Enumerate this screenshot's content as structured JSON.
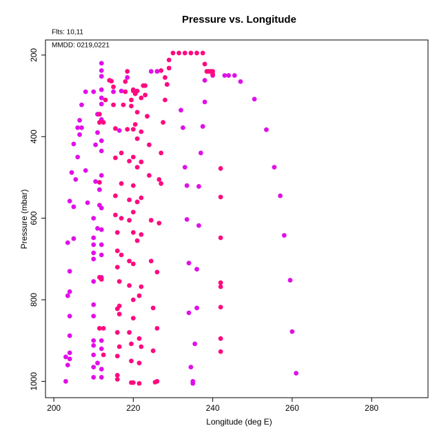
{
  "chart_data": {
    "type": "scatter",
    "title": "Pressure vs. Longitude",
    "annotations": [
      "Flts: 10,11",
      "MMDD: 0219,0221"
    ],
    "x_label": "Longitude (deg E)",
    "y_label": "Pressure (mbar)",
    "xlim": [
      197.9,
      294.2
    ],
    "ylim": [
      1040,
      163
    ],
    "xticks": [
      200,
      220,
      240,
      260,
      280
    ],
    "yticks": [
      200,
      400,
      600,
      800,
      1000
    ],
    "series": [
      {
        "color": "#e010e8",
        "x": [
          203,
          204,
          203,
          203.5,
          204,
          203.5,
          204,
          204,
          204,
          204,
          203.5,
          204,
          205,
          204.5,
          205,
          205,
          206,
          205.5,
          206,
          206.5,
          206.5,
          207,
          207,
          208,
          208,
          208.5,
          210,
          210,
          210,
          210,
          210,
          210,
          210,
          210,
          210,
          210,
          210,
          210,
          210,
          210,
          210.5,
          211,
          210.5,
          211,
          211,
          211,
          211.5,
          211.5,
          212,
          212,
          212,
          212,
          212,
          212,
          212,
          212,
          212,
          212,
          212,
          212,
          212,
          212,
          212,
          212,
          212,
          212,
          212,
          211.5,
          217,
          218.5,
          215,
          216.5,
          224.5,
          226,
          228.5,
          232,
          232.5,
          233,
          233.5,
          233.5,
          234,
          234,
          234.5,
          235,
          235,
          235.5,
          236,
          236,
          236.5,
          236.5,
          237,
          237.5,
          238,
          238,
          240,
          243,
          244,
          245.5,
          247,
          250.5,
          253.5,
          255.5,
          257,
          258,
          259.5,
          260,
          261
        ],
        "values": [
          940,
          930,
          1000,
          960,
          945,
          790,
          780,
          840,
          888,
          730,
          660,
          558,
          572,
          488,
          650,
          418,
          450,
          505,
          378,
          395,
          360,
          378,
          322,
          290,
          483,
          562,
          290,
          600,
          648,
          665,
          685,
          700,
          755,
          812,
          840,
          900,
          912,
          935,
          965,
          990,
          510,
          345,
          420,
          390,
          625,
          955,
          530,
          568,
          220,
          238,
          252,
          285,
          305,
          320,
          358,
          410,
          435,
          495,
          575,
          628,
          665,
          690,
          745,
          900,
          920,
          970,
          990,
          870,
          288,
          255,
          290,
          385,
          240,
          240,
          272,
          335,
          378,
          475,
          520,
          603,
          710,
          832,
          965,
          1005,
          1000,
          908,
          820,
          725,
          618,
          522,
          440,
          375,
          315,
          262,
          250,
          250,
          250,
          250,
          265,
          308,
          383,
          475,
          545,
          642,
          752,
          878,
          980
        ]
      },
      {
        "color": "#ff0a80",
        "x": [
          211.5,
          211.5,
          212.5,
          211.5,
          211.5,
          211.5,
          212.5,
          212.5,
          212,
          213,
          214,
          214.5,
          215,
          215,
          215.5,
          215.5,
          215.5,
          215.5,
          216,
          216,
          216,
          216,
          216,
          216,
          216,
          216,
          216.5,
          216.5,
          216.5,
          216.5,
          217,
          217,
          217,
          217,
          217.5,
          218,
          218,
          218.5,
          218.5,
          219,
          219,
          219,
          219,
          219,
          219,
          219.5,
          219.5,
          219.5,
          219.5,
          220,
          219.5,
          220,
          220,
          220,
          220,
          220,
          220,
          220,
          220,
          220,
          220,
          220.5,
          220.5,
          221,
          221,
          221,
          221,
          221,
          221,
          221.5,
          221.5,
          221.5,
          221.5,
          222,
          222,
          222,
          222,
          222,
          222,
          222,
          222.5,
          223,
          223,
          223.5,
          224,
          224,
          224.5,
          224.5,
          225,
          225,
          225.5,
          226,
          226,
          226,
          226.5,
          226.5,
          227,
          227,
          227.5,
          228,
          228,
          228.5,
          229,
          229,
          230,
          231.5,
          233,
          234.5,
          236,
          237.5,
          238,
          238.5,
          239,
          239.5,
          240,
          240,
          242,
          242,
          242,
          242,
          242,
          242,
          242,
          242,
          227
        ],
        "values": [
          345,
          365,
          365,
          512,
          745,
          870,
          870,
          935,
          750,
          310,
          262,
          264,
          278,
          322,
          380,
          452,
          545,
          592,
          635,
          680,
          720,
          822,
          880,
          938,
          985,
          995,
          815,
          835,
          915,
          755,
          690,
          600,
          515,
          440,
          322,
          265,
          290,
          240,
          382,
          460,
          555,
          605,
          705,
          765,
          880,
          950,
          1003,
          908,
          325,
          382,
          310,
          288,
          285,
          450,
          520,
          585,
          635,
          712,
          800,
          845,
          1003,
          370,
          295,
          288,
          340,
          405,
          475,
          560,
          655,
          895,
          955,
          790,
          1005,
          768,
          915,
          640,
          550,
          462,
          388,
          305,
          275,
          298,
          275,
          350,
          420,
          495,
          605,
          705,
          820,
          925,
          1002,
          1000,
          870,
          732,
          612,
          505,
          440,
          238,
          365,
          310,
          255,
          272,
          232,
          212,
          195,
          195,
          195,
          195,
          195,
          195,
          222,
          240,
          240,
          240,
          240,
          247,
          478,
          548,
          648,
          758,
          768,
          818,
          895,
          927,
          515
        ]
      }
    ]
  }
}
